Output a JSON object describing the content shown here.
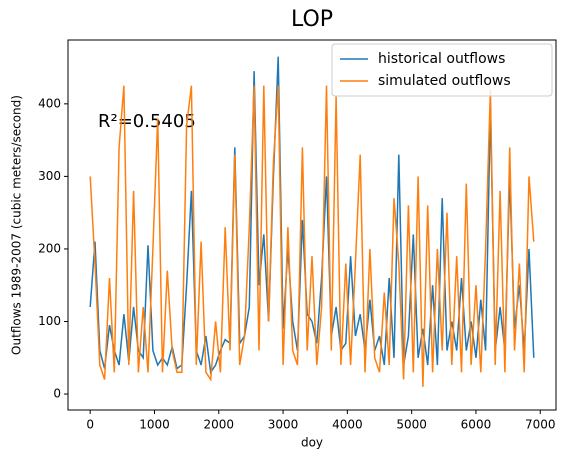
{
  "chart_data": {
    "type": "line",
    "title": "LOP",
    "xlabel": "doy",
    "ylabel": "Outflows 1989-2007 (cubic meters/second)",
    "annotation": "R²=0.5405",
    "x": [
      0,
      75,
      150,
      225,
      300,
      375,
      450,
      525,
      600,
      675,
      750,
      825,
      900,
      975,
      1050,
      1125,
      1200,
      1275,
      1350,
      1425,
      1500,
      1575,
      1650,
      1725,
      1800,
      1875,
      1950,
      2025,
      2100,
      2175,
      2250,
      2325,
      2400,
      2475,
      2550,
      2625,
      2700,
      2775,
      2850,
      2925,
      3000,
      3075,
      3150,
      3225,
      3300,
      3375,
      3450,
      3525,
      3600,
      3675,
      3750,
      3825,
      3900,
      3975,
      4050,
      4125,
      4200,
      4275,
      4350,
      4425,
      4500,
      4575,
      4650,
      4725,
      4800,
      4875,
      4950,
      5025,
      5100,
      5175,
      5250,
      5325,
      5400,
      5475,
      5550,
      5625,
      5700,
      5775,
      5850,
      5925,
      6000,
      6075,
      6150,
      6225,
      6300,
      6375,
      6450,
      6525,
      6600,
      6675,
      6750,
      6825,
      6900
    ],
    "series": [
      {
        "name": "historical outflows",
        "color": "#1f77b4",
        "values": [
          120,
          210,
          60,
          35,
          95,
          60,
          40,
          110,
          45,
          120,
          60,
          50,
          205,
          60,
          40,
          50,
          40,
          65,
          35,
          40,
          150,
          280,
          60,
          40,
          80,
          30,
          40,
          60,
          75,
          70,
          340,
          70,
          80,
          120,
          445,
          150,
          220,
          100,
          300,
          465,
          90,
          200,
          100,
          60,
          240,
          110,
          100,
          70,
          160,
          300,
          80,
          120,
          60,
          70,
          190,
          80,
          110,
          60,
          130,
          60,
          80,
          40,
          160,
          50,
          330,
          40,
          80,
          220,
          50,
          90,
          40,
          150,
          40,
          270,
          60,
          100,
          60,
          160,
          60,
          100,
          50,
          130,
          60,
          395,
          60,
          120,
          60,
          300,
          90,
          150,
          60,
          200,
          50
        ]
      },
      {
        "name": "simulated outflows",
        "color": "#ff7f0e",
        "values": [
          300,
          180,
          40,
          20,
          160,
          30,
          340,
          425,
          40,
          280,
          30,
          120,
          30,
          200,
          380,
          30,
          170,
          60,
          30,
          30,
          370,
          425,
          40,
          210,
          30,
          20,
          100,
          30,
          230,
          60,
          330,
          40,
          80,
          230,
          425,
          60,
          425,
          100,
          320,
          425,
          40,
          230,
          60,
          40,
          340,
          60,
          190,
          40,
          120,
          425,
          60,
          410,
          40,
          180,
          40,
          180,
          330,
          30,
          200,
          50,
          30,
          140,
          40,
          270,
          180,
          20,
          260,
          30,
          300,
          10,
          260,
          30,
          200,
          60,
          250,
          40,
          190,
          30,
          290,
          40,
          150,
          30,
          200,
          420,
          40,
          280,
          30,
          340,
          60,
          180,
          30,
          300,
          210
        ]
      }
    ],
    "xlim": [
      -345,
      7245
    ],
    "ylim": [
      -22,
      488
    ],
    "xticks": [
      0,
      1000,
      2000,
      3000,
      4000,
      5000,
      6000,
      7000
    ],
    "yticks": [
      0,
      100,
      200,
      300,
      400
    ],
    "legend": "upper right"
  }
}
